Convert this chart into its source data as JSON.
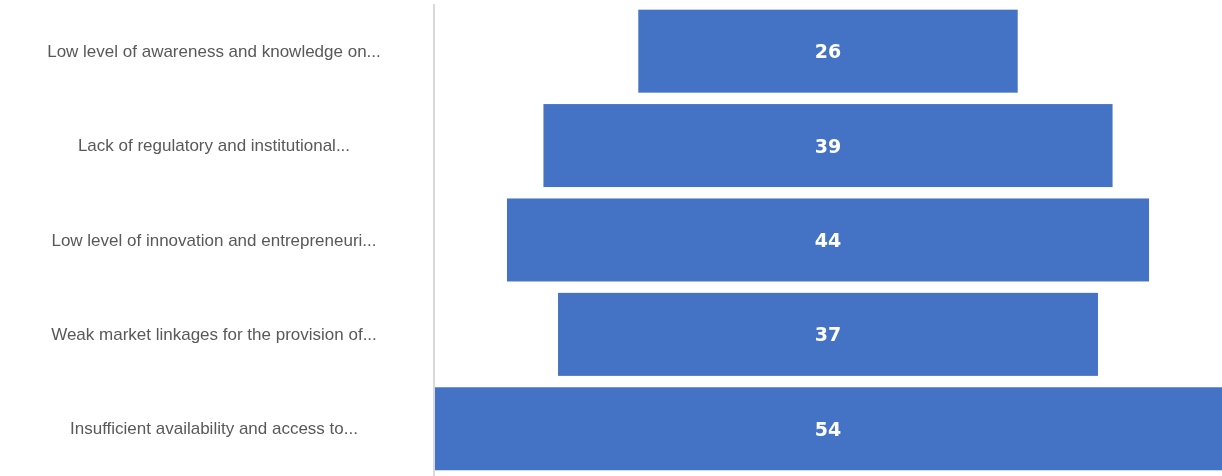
{
  "chart_data": {
    "type": "other",
    "categories": [
      "Low level of awareness and knowledge on...",
      "Lack of regulatory and institutional...",
      "Low level of innovation and entrepreneuri...",
      "Weak market linkages for the provision of...",
      "Insufficient availability and access to..."
    ],
    "values": [
      26,
      39,
      44,
      37,
      54
    ],
    "color": "#4472c4",
    "data_labels": true
  }
}
